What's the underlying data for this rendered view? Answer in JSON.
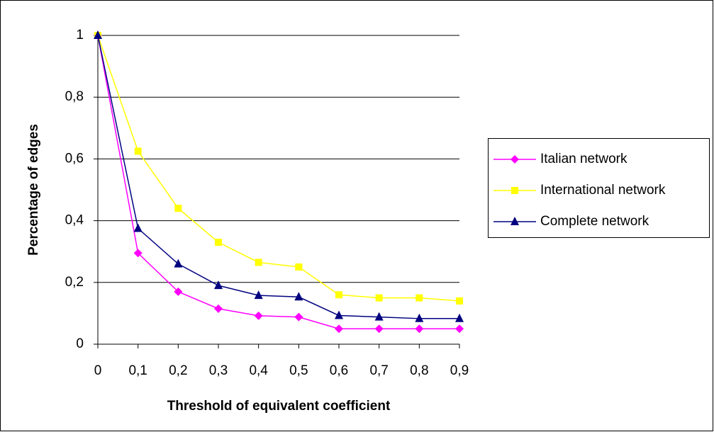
{
  "chart_data": {
    "type": "line",
    "x_label": "Threshold of equivalent coefficient",
    "y_label": "Percentage of edges",
    "categories": [
      "0",
      "0,1",
      "0,2",
      "0,3",
      "0,4",
      "0,5",
      "0,6",
      "0,7",
      "0,8",
      "0,9"
    ],
    "series": [
      {
        "name": "Italian network",
        "color": "#ff00ff",
        "marker": "diamond",
        "values": [
          1,
          0.295,
          0.17,
          0.115,
          0.092,
          0.088,
          0.05,
          0.05,
          0.05,
          0.05
        ]
      },
      {
        "name": "International network",
        "color": "#ffff00",
        "marker": "square",
        "values": [
          1,
          0.625,
          0.44,
          0.33,
          0.265,
          0.25,
          0.16,
          0.15,
          0.15,
          0.14
        ]
      },
      {
        "name": "Complete network",
        "color": "#000080",
        "marker": "triangle",
        "values": [
          1,
          0.375,
          0.26,
          0.19,
          0.158,
          0.153,
          0.093,
          0.088,
          0.083,
          0.083
        ]
      }
    ],
    "ylim": [
      0,
      1
    ],
    "yticks": [
      0,
      {
        "value": 0.2,
        "label": "0,2"
      },
      {
        "value": 0.4,
        "label": "0,4"
      },
      {
        "value": 0.6,
        "label": "0,6"
      },
      {
        "value": 0.8,
        "label": "0,8"
      },
      1
    ],
    "grid": true,
    "legend": "right"
  }
}
